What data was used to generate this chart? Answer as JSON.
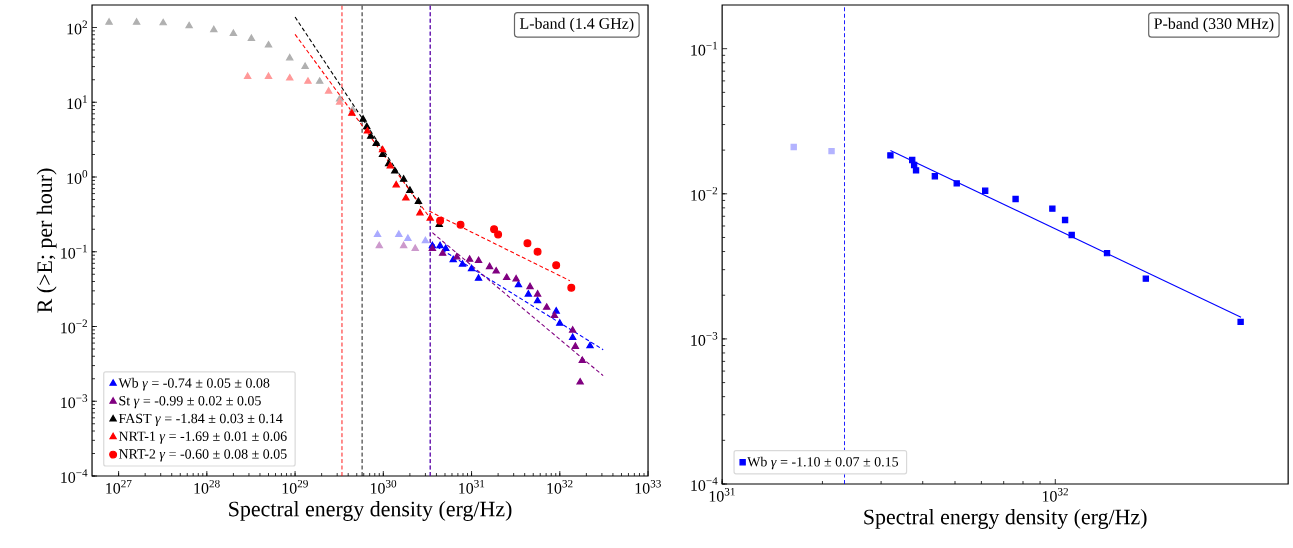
{
  "chart_data": [
    {
      "type": "scatter",
      "xlabel": "Spectral energy density (erg/Hz)",
      "ylabel": "R (>E; per hour)",
      "log": "xy",
      "legend": "bottom left",
      "xlim": [
        5e+26,
        1e+33
      ],
      "ylim": [
        0.0001,
        200
      ],
      "xticks": [
        {
          "value": 1e+27,
          "label": "10$^{27}$"
        },
        {
          "value": 1e+28,
          "label": "10$^{28}$"
        },
        {
          "value": 1e+29,
          "label": "10$^{29}$"
        },
        {
          "value": 1e+30,
          "label": "10$^{30}$"
        },
        {
          "value": 1e+31,
          "label": "10$^{31}$"
        },
        {
          "value": 1e+32,
          "label": "10$^{32}$"
        },
        {
          "value": 1e+33,
          "label": "10$^{33}$"
        }
      ],
      "yticks": [
        {
          "value": 0.0001,
          "label": "10$^{−4}$"
        },
        {
          "value": 0.001,
          "label": "10$^{−3}$"
        },
        {
          "value": 0.01,
          "label": "10$^{−2}$"
        },
        {
          "value": 0.1,
          "label": "10$^{−1}$"
        },
        {
          "value": 1,
          "label": "10$^{0}$"
        },
        {
          "value": 10,
          "label": "10$^{1}$"
        },
        {
          "value": 100,
          "label": "10$^{2}$"
        }
      ],
      "annotations": [
        "L-band (1.4 GHz)"
      ],
      "ref_lines": [
        {
          "axis": "x",
          "value": 3.4e+29,
          "color": "#ff0000",
          "line_style": "dashed"
        },
        {
          "axis": "x",
          "value": 5.75e+29,
          "color": "#000000",
          "line_style": "dashed"
        },
        {
          "axis": "x",
          "value": 3.4e+30,
          "color": "#0000ff",
          "line_style": "dashed"
        },
        {
          "axis": "x",
          "value": 3.4e+30,
          "color": "#800080",
          "line_style": "dashed"
        }
      ],
      "series": [
        {
          "color": "#b0b0b0",
          "marker": "triangle",
          "x": [
            7.8e+26,
            1.6e+27,
            3.2e+27,
            6.3e+27,
            1.2e+28,
            2e+28,
            3.2e+28,
            5e+28,
            8.7e+28,
            1.3e+29,
            1.9e+29,
            3.2e+29,
            4.5e+29
          ],
          "values": [
            117,
            117,
            115,
            105,
            93,
            83,
            71,
            58,
            39,
            30,
            19,
            11,
            7.9
          ]
        },
        {
          "color": "#ff9999",
          "marker": "triangle",
          "x": [
            2.9e+28,
            5e+28,
            8.7e+28,
            1.4e+29,
            2.4e+29,
            3.2e+29
          ],
          "values": [
            22,
            22,
            21,
            19,
            14,
            10
          ]
        },
        {
          "color": "#aaaaff",
          "marker": "triangle",
          "x": [
            8.6e+29,
            1.5e+30,
            1.9e+30,
            3e+30
          ],
          "values": [
            0.17,
            0.17,
            0.15,
            0.14
          ]
        },
        {
          "color": "#cc99cc",
          "marker": "triangle",
          "x": [
            9e+29,
            1.7e+30,
            2.3e+30
          ],
          "values": [
            0.12,
            0.12,
            0.11
          ]
        },
        {
          "name": "Wb *γ* = -0.74 ± 0.05 ± 0.08",
          "color": "#0000ff",
          "marker": "triangle",
          "x": [
            3.6e+30,
            4.4e+30,
            5.1e+30,
            6.2e+30,
            7.9e+30,
            1e+31,
            1.2e+31,
            3.4e+31,
            4.4e+31,
            5.6e+31,
            9.1e+31,
            1e+32,
            1.4e+32,
            2.2e+32
          ],
          "values": [
            0.12,
            0.12,
            0.11,
            0.078,
            0.068,
            0.059,
            0.044,
            0.036,
            0.027,
            0.022,
            0.016,
            0.011,
            0.0071,
            0.0055
          ]
        },
        {
          "name": "St *γ* = -0.99 ± 0.02 ± 0.05",
          "color": "#800080",
          "marker": "triangle",
          "x": [
            3.6e+30,
            4.7e+30,
            6.8e+30,
            9.5e+30,
            1.2e+31,
            1.6e+31,
            1.9e+31,
            2.5e+31,
            3.2e+31,
            4.6e+31,
            5.6e+31,
            7.1e+31,
            8.7e+31,
            1.4e+32,
            1.5e+32,
            1.8e+32,
            1.7e+32
          ],
          "values": [
            0.11,
            0.095,
            0.085,
            0.079,
            0.076,
            0.063,
            0.055,
            0.045,
            0.043,
            0.034,
            0.027,
            0.018,
            0.014,
            0.0089,
            0.0054,
            0.0035,
            0.0018
          ]
        },
        {
          "name": "FAST *γ* = -1.84 ± 0.03 ± 0.14",
          "color": "#000000",
          "marker": "triangle",
          "x": [
            5.9e+29,
            6.5e+29,
            7.2e+29,
            8.3e+29,
            9.8e+29,
            1.15e+30,
            1.35e+30,
            1.7e+30,
            2e+30,
            2.5e+30,
            4.3e+30
          ],
          "values": [
            5.9,
            4.7,
            3.5,
            2.8,
            2.0,
            1.5,
            1.2,
            0.93,
            0.66,
            0.47,
            0.23
          ]
        },
        {
          "name": "NRT-1 *γ* = -1.69 ± 0.01 ± 0.06",
          "color": "#ff0000",
          "marker": "triangle",
          "x": [
            4.4e+29,
            6.6e+29,
            9.8e+29,
            1.2e+30,
            1.4e+30,
            1.8e+30,
            2.6e+30,
            3.4e+30
          ],
          "values": [
            7.1,
            4.1,
            2.3,
            1.4,
            0.78,
            0.52,
            0.33,
            0.28
          ]
        },
        {
          "name": "NRT-2 *γ* = -0.60 ± 0.08 ± 0.05",
          "color": "#ff0000",
          "marker": "circle",
          "x": [
            4.4e+30,
            7.5e+30,
            1.8e+31,
            2e+31,
            4.3e+31,
            5.6e+31,
            9.1e+31,
            1.35e+32
          ],
          "values": [
            0.26,
            0.23,
            0.2,
            0.17,
            0.13,
            0.1,
            0.066,
            0.033
          ]
        },
        {
          "type": "line",
          "line_style": "dashed",
          "color": "#0000ff",
          "x": [
            3.5e+30,
            3.1e+32
          ],
          "values": [
            0.13,
            0.0049
          ]
        },
        {
          "type": "line",
          "line_style": "dashed",
          "color": "#800080",
          "x": [
            3.6e+30,
            3.1e+32
          ],
          "values": [
            0.18,
            0.0022
          ]
        },
        {
          "type": "line",
          "line_style": "dashed",
          "color": "#000000",
          "x": [
            1e+29,
            2.7e+30
          ],
          "values": [
            138,
            0.39
          ]
        },
        {
          "type": "line",
          "line_style": "dashed",
          "color": "#ff0000",
          "x": [
            1e+29,
            3.2e+30
          ],
          "values": [
            81,
            0.31
          ]
        },
        {
          "type": "line",
          "line_style": "dashed",
          "color": "#ff0000",
          "x": [
            3.3e+30,
            1.3e+32
          ],
          "values": [
            0.35,
            0.041
          ]
        }
      ]
    },
    {
      "type": "scatter",
      "xlabel": "Spectral energy density (erg/Hz)",
      "log": "xy",
      "legend": "bottom left",
      "xlim": [
        1e+31,
        5e+32
      ],
      "ylim": [
        0.0001,
        0.2
      ],
      "xticks": [
        {
          "value": 1e+31,
          "label": "10$^{31}$"
        },
        {
          "value": 1e+32,
          "label": "10$^{32}$"
        }
      ],
      "yticks": [
        {
          "value": 0.0001,
          "label": "10$^{−4}$"
        },
        {
          "value": 0.001,
          "label": "10$^{−3}$"
        },
        {
          "value": 0.01,
          "label": "10$^{−2}$"
        },
        {
          "value": 0.1,
          "label": "10$^{−1}$"
        }
      ],
      "annotations": [
        "P-band (330 MHz)"
      ],
      "ref_lines": [
        {
          "axis": "x",
          "value": 2.33e+31,
          "color": "#0000ff",
          "line_style": "dashed"
        }
      ],
      "series": [
        {
          "color": "#b3b3ff",
          "marker": "square",
          "x": [
            1.64e+31,
            2.13e+31
          ],
          "values": [
            0.021,
            0.0197
          ]
        },
        {
          "name": "Wb *γ* = -1.10 ± 0.07 ± 0.15",
          "color": "#0000ff",
          "marker": "square",
          "x": [
            3.2e+31,
            3.72e+31,
            3.77e+31,
            3.82e+31,
            4.35e+31,
            5.06e+31,
            6.16e+31,
            7.6e+31,
            9.8e+31,
            1.07e+32,
            1.12e+32,
            1.43e+32,
            1.87e+32,
            3.6e+32
          ],
          "values": [
            0.0184,
            0.0171,
            0.0158,
            0.0145,
            0.0132,
            0.0118,
            0.0105,
            0.0092,
            0.0079,
            0.0066,
            0.0052,
            0.0039,
            0.0026,
            0.00131
          ]
        },
        {
          "type": "line",
          "line_style": "solid",
          "color": "#0000ff",
          "x": [
            3.2e+31,
            3.61e+32
          ],
          "values": [
            0.0199,
            0.00141
          ]
        }
      ]
    }
  ]
}
